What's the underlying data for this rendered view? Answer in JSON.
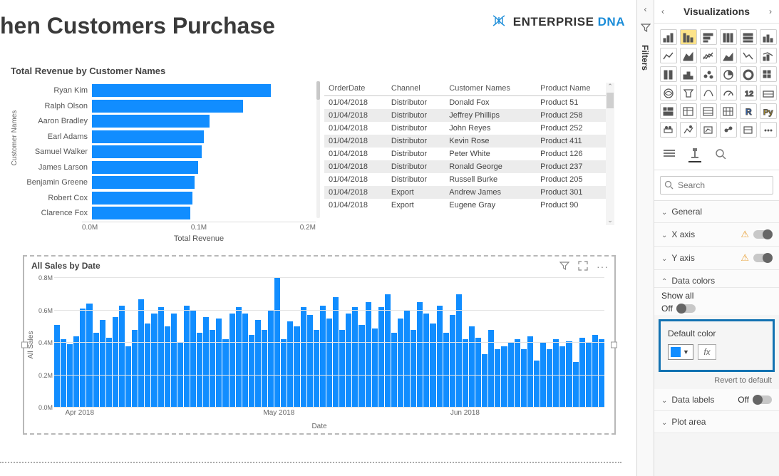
{
  "page_title": "hen Customers Purchase",
  "brand": {
    "name": "ENTERPRISE",
    "accent": "DNA",
    "accent_color": "#1a8cd8"
  },
  "hbar_chart": {
    "title": "Total Revenue by Customer Names",
    "yaxis_label": "Customer Names",
    "xaxis_label": "Total Revenue",
    "xticks": [
      "0.0M",
      "0.1M",
      "0.2M"
    ],
    "xlim": [
      0,
      0.2
    ],
    "bar_color": "#118dff",
    "background_color": "#ffffff",
    "label_fontsize": 11,
    "rows": [
      {
        "name": "Ryan Kim",
        "value": 0.16
      },
      {
        "name": "Ralph Olson",
        "value": 0.135
      },
      {
        "name": "Aaron Bradley",
        "value": 0.105
      },
      {
        "name": "Earl Adams",
        "value": 0.1
      },
      {
        "name": "Samuel Walker",
        "value": 0.098
      },
      {
        "name": "James Larson",
        "value": 0.095
      },
      {
        "name": "Benjamin Greene",
        "value": 0.092
      },
      {
        "name": "Robert Cox",
        "value": 0.09
      },
      {
        "name": "Clarence Fox",
        "value": 0.088
      }
    ]
  },
  "data_table": {
    "columns": [
      "OrderDate",
      "Channel",
      "Customer Names",
      "Product Name"
    ],
    "rows": [
      [
        "01/04/2018",
        "Distributor",
        "Donald Fox",
        "Product 51"
      ],
      [
        "01/04/2018",
        "Distributor",
        "Jeffrey Phillips",
        "Product 258"
      ],
      [
        "01/04/2018",
        "Distributor",
        "John Reyes",
        "Product 252"
      ],
      [
        "01/04/2018",
        "Distributor",
        "Kevin Rose",
        "Product 411"
      ],
      [
        "01/04/2018",
        "Distributor",
        "Peter White",
        "Product 126"
      ],
      [
        "01/04/2018",
        "Distributor",
        "Ronald George",
        "Product 237"
      ],
      [
        "01/04/2018",
        "Distributor",
        "Russell Burke",
        "Product 205"
      ],
      [
        "01/04/2018",
        "Export",
        "Andrew James",
        "Product 301"
      ],
      [
        "01/04/2018",
        "Export",
        "Eugene Gray",
        "Product 90"
      ]
    ]
  },
  "col_chart": {
    "title": "All Sales by Date",
    "yaxis_label": "All Sales",
    "xaxis_label": "Date",
    "bar_color": "#118dff",
    "grid_color": "#e4e4e4",
    "ylim": [
      0,
      0.8
    ],
    "ytick_step": 0.2,
    "yticks": [
      "0.0M",
      "0.2M",
      "0.4M",
      "0.6M",
      "0.8M"
    ],
    "xticks": [
      {
        "label": "Apr 2018",
        "pos": 0.02
      },
      {
        "label": "May 2018",
        "pos": 0.38
      },
      {
        "label": "Jun 2018",
        "pos": 0.72
      }
    ],
    "values": [
      0.51,
      0.42,
      0.39,
      0.44,
      0.61,
      0.64,
      0.46,
      0.54,
      0.43,
      0.56,
      0.63,
      0.38,
      0.48,
      0.67,
      0.52,
      0.58,
      0.62,
      0.5,
      0.58,
      0.4,
      0.63,
      0.6,
      0.46,
      0.56,
      0.48,
      0.55,
      0.42,
      0.58,
      0.62,
      0.58,
      0.45,
      0.54,
      0.48,
      0.6,
      0.8,
      0.42,
      0.53,
      0.5,
      0.62,
      0.57,
      0.48,
      0.63,
      0.55,
      0.68,
      0.48,
      0.58,
      0.62,
      0.51,
      0.65,
      0.49,
      0.62,
      0.7,
      0.46,
      0.55,
      0.6,
      0.48,
      0.65,
      0.58,
      0.52,
      0.63,
      0.46,
      0.57,
      0.7,
      0.42,
      0.5,
      0.43,
      0.33,
      0.48,
      0.36,
      0.38,
      0.4,
      0.42,
      0.36,
      0.44,
      0.29,
      0.4,
      0.36,
      0.42,
      0.38,
      0.41,
      0.28,
      0.43,
      0.4,
      0.45,
      0.42
    ]
  },
  "filters_tab": {
    "label": "Filters"
  },
  "vis_pane": {
    "title": "Visualizations",
    "search_placeholder": "Search",
    "selected_type_index": 1,
    "sections": {
      "general": {
        "label": "General",
        "expanded": false
      },
      "xaxis": {
        "label": "X axis",
        "expanded": false,
        "warning": true
      },
      "yaxis": {
        "label": "Y axis",
        "expanded": false,
        "warning": true
      },
      "datacolors": {
        "label": "Data colors",
        "expanded": true
      },
      "datalabels": {
        "label": "Data labels",
        "expanded": false,
        "toggle": "Off"
      },
      "plotarea": {
        "label": "Plot area",
        "expanded": false
      }
    },
    "show_all": {
      "label": "Show all",
      "state_label": "Off"
    },
    "default_color": {
      "label": "Default color",
      "hex": "#118dff",
      "fx_label": "fx"
    },
    "revert_label": "Revert to default"
  }
}
